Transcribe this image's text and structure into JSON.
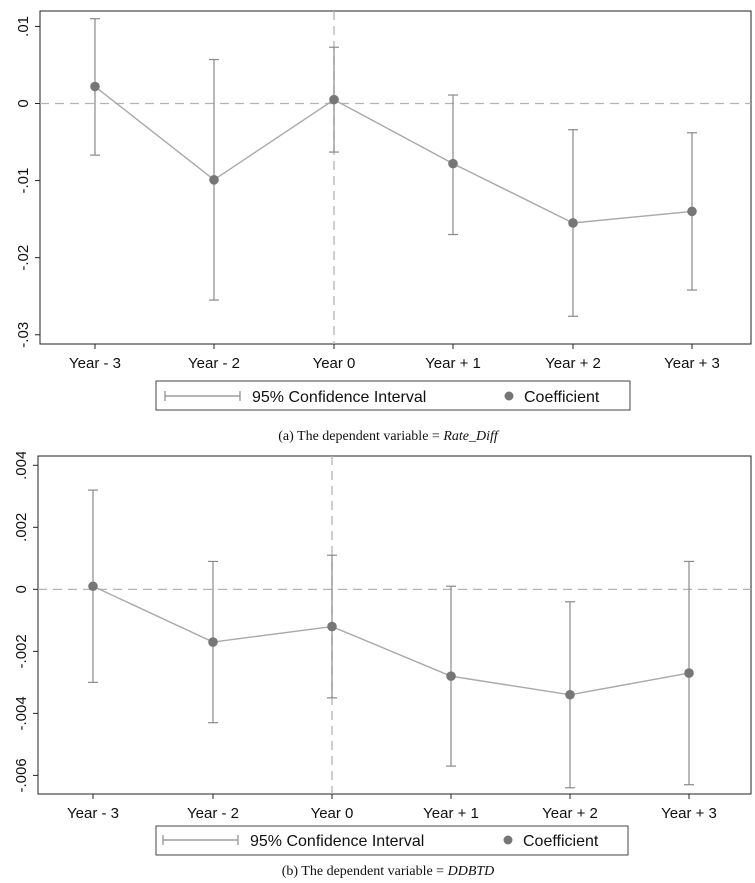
{
  "charts": [
    {
      "id": "a",
      "caption_prefix": "(a) The dependent variable = ",
      "caption_var": "Rate_Diff",
      "chart_data": {
        "type": "scatter",
        "categories": [
          "Year - 3",
          "Year - 2",
          "Year 0",
          "Year + 1",
          "Year + 2",
          "Year + 3"
        ],
        "coefficients": [
          0.0022,
          -0.0099,
          0.0005,
          -0.0078,
          -0.0155,
          -0.014
        ],
        "ci_low": [
          -0.0067,
          -0.0255,
          -0.0063,
          -0.017,
          -0.0276,
          -0.0242
        ],
        "ci_high": [
          0.011,
          0.0057,
          0.0073,
          0.0011,
          -0.0034,
          -0.0038
        ],
        "yticks": [
          0.01,
          0,
          -0.01,
          -0.02,
          -0.03
        ],
        "ytick_labels": [
          ".01",
          "0",
          "-.01",
          "-.02",
          "-.03"
        ],
        "ylim": [
          -0.0312,
          0.012
        ],
        "reference_line_y": 0,
        "reference_line_category": "Year 0",
        "legend": {
          "placement": "bottom",
          "ci_label": "95% Confidence Interval",
          "point_label": "Coefficient"
        },
        "line_color": "#a8a8a8",
        "ci_color": "#8a8a8a",
        "point_color": "#767676",
        "ref_color": "#b3b3b3"
      }
    },
    {
      "id": "b",
      "caption_prefix": "(b) The dependent variable = ",
      "caption_var": "DDBTD",
      "chart_data": {
        "type": "scatter",
        "categories": [
          "Year - 3",
          "Year - 2",
          "Year 0",
          "Year + 1",
          "Year + 2",
          "Year + 3"
        ],
        "coefficients": [
          0.0001,
          -0.0017,
          -0.0012,
          -0.0028,
          -0.0034,
          -0.0027
        ],
        "ci_low": [
          -0.003,
          -0.0043,
          -0.0035,
          -0.0057,
          -0.0064,
          -0.0063
        ],
        "ci_high": [
          0.0032,
          0.0009,
          0.0011,
          0.0001,
          -0.0004,
          0.0009
        ],
        "yticks": [
          0.004,
          0.002,
          0,
          -0.002,
          -0.004,
          -0.006
        ],
        "ytick_labels": [
          ".004",
          ".002",
          "0",
          "-.002",
          "-.004",
          "-.006"
        ],
        "ylim": [
          -0.0066,
          0.0043
        ],
        "reference_line_y": 0,
        "reference_line_category": "Year 0",
        "legend": {
          "placement": "bottom",
          "ci_label": "95% Confidence Interval",
          "point_label": "Coefficient"
        },
        "line_color": "#a8a8a8",
        "ci_color": "#8a8a8a",
        "point_color": "#767676",
        "ref_color": "#b3b3b3"
      }
    }
  ]
}
